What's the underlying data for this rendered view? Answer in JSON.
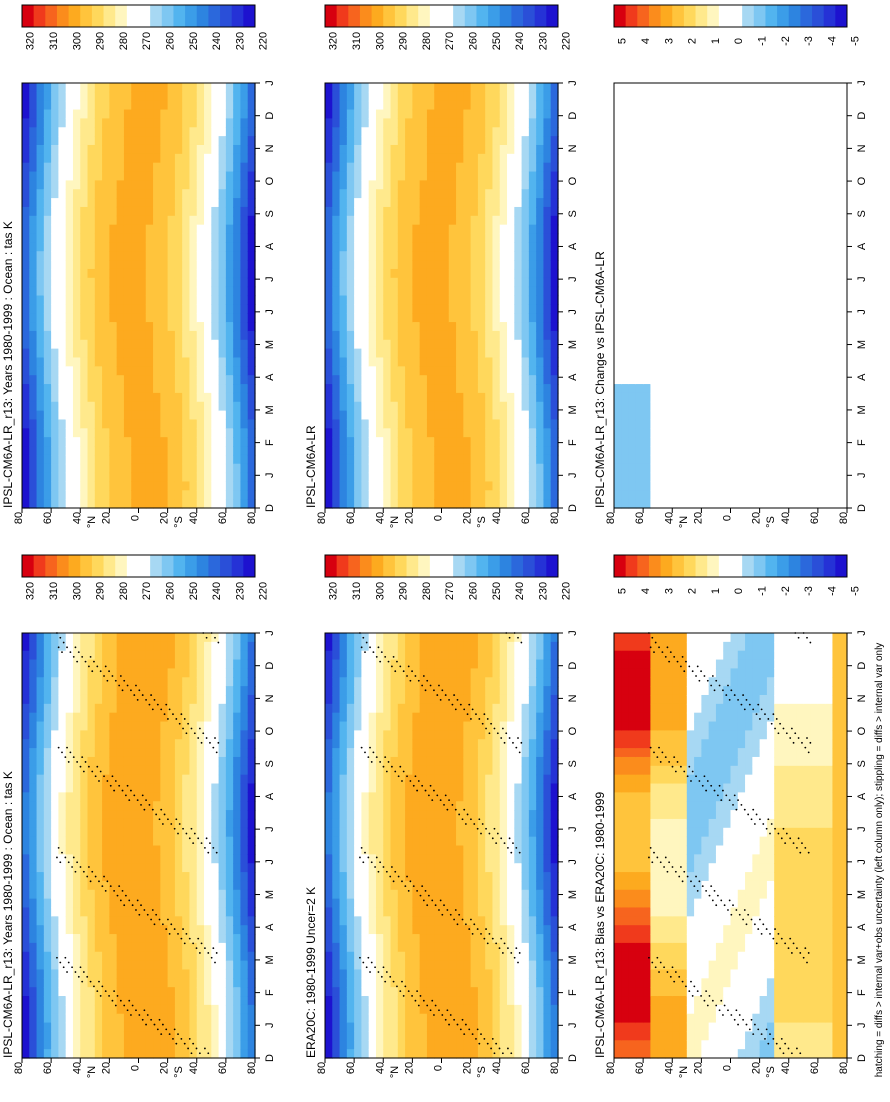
{
  "footer": "hatching = diffs > internal var+obs uncertainty (left column only); stippling = diffs > internal var only",
  "colorbars": {
    "abs_ticks": [
      "320",
      "310",
      "300",
      "290",
      "280",
      "270",
      "260",
      "250",
      "240",
      "230",
      "220"
    ],
    "diff_ticks": [
      "5",
      "4",
      "3",
      "2",
      "1",
      "0",
      "-1",
      "-2",
      "-3",
      "-4",
      "-5"
    ],
    "abs_colors": [
      "#d7000f",
      "#f03a1c",
      "#f7641e",
      "#fb8c1c",
      "#fdaa1f",
      "#ffc43c",
      "#ffd85c",
      "#ffe98c",
      "#fff6bf",
      "#ffffff",
      "#ffffff",
      "#a7d8f3",
      "#7ec7f2",
      "#52b4ef",
      "#3b9de8",
      "#2d84e0",
      "#2b68dc",
      "#2a4fd8",
      "#2532d6",
      "#1d12cf"
    ],
    "diff_colors": [
      "#d7000f",
      "#f03a1c",
      "#f7641e",
      "#fb8c1c",
      "#fdaa1f",
      "#ffc43c",
      "#ffd85c",
      "#ffe98c",
      "#fff6bf",
      "#ffffff",
      "#ffffff",
      "#a7d8f3",
      "#7ec7f2",
      "#52b4ef",
      "#3b9de8",
      "#2d84e0",
      "#2b68dc",
      "#2a4fd8",
      "#2532d6",
      "#1d12cf"
    ]
  },
  "axis": {
    "months": [
      "D",
      "J",
      "F",
      "M",
      "A",
      "M",
      "J",
      "J",
      "A",
      "S",
      "O",
      "N",
      "D",
      "J"
    ],
    "lat_labels": [
      "80",
      "60",
      "40",
      "20",
      "0",
      "20",
      "40",
      "60",
      "80"
    ],
    "lat_hemi": [
      "N",
      "S"
    ],
    "lat_hemi_suffix": "°"
  },
  "chart_data": [
    {
      "type": "heatmap",
      "title": "IPSL-CM6A-LR_r13: Years 1980-1999 : Ocean : tas K",
      "x": "month",
      "y": "latitude",
      "colorbar": "abs",
      "range": [
        220,
        320
      ],
      "stippling": true,
      "hatching": true
    },
    {
      "type": "heatmap",
      "title": "IPSL-CM6A-LR_r13: Years 1980-1999 : Ocean : tas K",
      "x": "month",
      "y": "latitude",
      "colorbar": "abs",
      "range": [
        220,
        320
      ],
      "stippling": false,
      "hatching": false
    },
    {
      "type": "heatmap",
      "title": "ERA20C: 1980-1999 Uncer=2 K",
      "x": "month",
      "y": "latitude",
      "colorbar": "abs",
      "range": [
        220,
        320
      ],
      "stippling": true,
      "hatching": true
    },
    {
      "type": "heatmap",
      "title": "IPSL-CM6A-LR",
      "x": "month",
      "y": "latitude",
      "colorbar": "abs",
      "range": [
        220,
        320
      ],
      "stippling": false,
      "hatching": false
    },
    {
      "type": "heatmap",
      "title": "IPSL-CM6A-LR_r13: Bias vs ERA20C: 1980-1999",
      "x": "month",
      "y": "latitude",
      "colorbar": "diff",
      "range": [
        -5,
        5
      ],
      "stippling": true,
      "hatching": true
    },
    {
      "type": "heatmap",
      "title": "IPSL-CM6A-LR_r13: Change vs IPSL-CM6A-LR",
      "x": "month",
      "y": "latitude",
      "colorbar": "diff",
      "range": [
        -5,
        5
      ],
      "stippling": false,
      "hatching": false
    }
  ]
}
